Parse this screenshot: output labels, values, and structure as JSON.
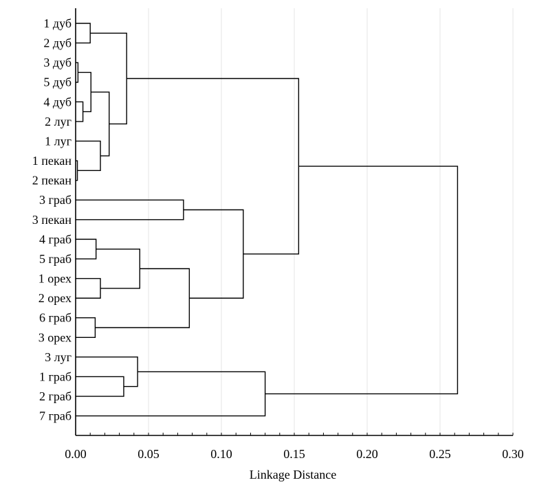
{
  "chart_data": {
    "type": "dendrogram",
    "orientation": "horizontal",
    "xlabel": "Linkage Distance",
    "xlim": [
      0,
      0.3
    ],
    "xticks": [
      "0.00",
      "0.05",
      "0.10",
      "0.15",
      "0.20",
      "0.25",
      "0.30"
    ],
    "tick_values": [
      0,
      0.05,
      0.1,
      0.15,
      0.2,
      0.25,
      0.3
    ],
    "grid": "vertical",
    "leaves": [
      "1 дуб",
      "2 дуб",
      "3 дуб",
      "5 дуб",
      "4 дуб",
      "2 луг",
      "1 луг",
      "1 пекан",
      "2 пекан",
      "3 граб",
      "3 пекан",
      "4 граб",
      "5 граб",
      "1 орех",
      "2 орех",
      "6 граб",
      "3 орех",
      "3 луг",
      "1 граб",
      "2 граб",
      "7 граб"
    ],
    "merges": [
      [
        0,
        1,
        0.01
      ],
      [
        2,
        3,
        0.0016
      ],
      [
        4,
        5,
        0.005
      ],
      [
        22,
        23,
        0.0105
      ],
      [
        7,
        8,
        0.0012
      ],
      [
        6,
        25,
        0.017
      ],
      [
        24,
        26,
        0.023
      ],
      [
        21,
        27,
        0.035
      ],
      [
        9,
        10,
        0.074
      ],
      [
        11,
        12,
        0.014
      ],
      [
        13,
        14,
        0.017
      ],
      [
        30,
        31,
        0.044
      ],
      [
        15,
        16,
        0.0134
      ],
      [
        32,
        33,
        0.078
      ],
      [
        29,
        34,
        0.115
      ],
      [
        28,
        35,
        0.153
      ],
      [
        18,
        19,
        0.033
      ],
      [
        17,
        37,
        0.0425
      ],
      [
        38,
        20,
        0.13
      ],
      [
        36,
        39,
        0.262
      ]
    ]
  }
}
